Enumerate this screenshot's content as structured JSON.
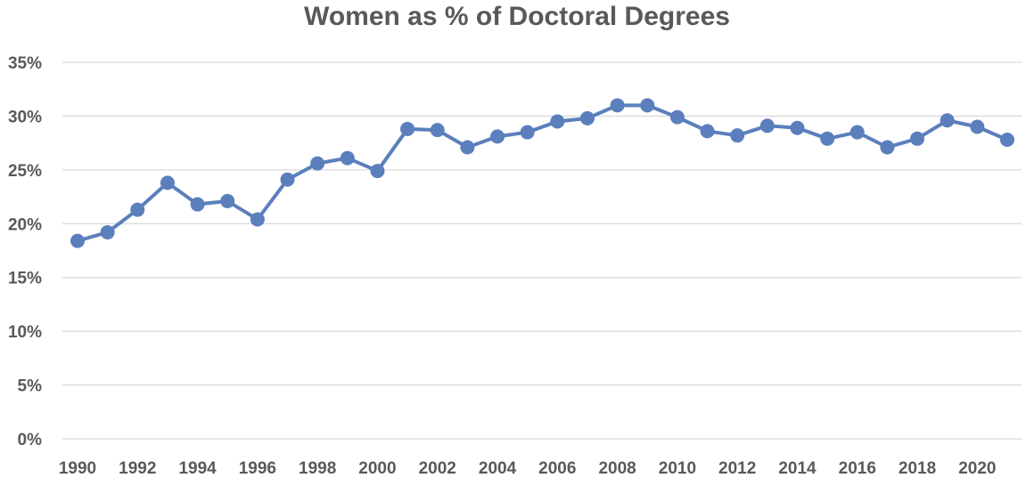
{
  "chart_data": {
    "type": "line",
    "title": "Women as % of Doctoral Degrees",
    "xlabel": "",
    "ylabel": "",
    "x": [
      1990,
      1991,
      1992,
      1993,
      1994,
      1995,
      1996,
      1997,
      1998,
      1999,
      2000,
      2001,
      2002,
      2003,
      2004,
      2005,
      2006,
      2007,
      2008,
      2009,
      2010,
      2011,
      2012,
      2013,
      2014,
      2015,
      2016,
      2017,
      2018,
      2019,
      2020,
      2021
    ],
    "x_tick_labels": [
      "1990",
      "1992",
      "1994",
      "1996",
      "1998",
      "2000",
      "2002",
      "2004",
      "2006",
      "2008",
      "2010",
      "2012",
      "2014",
      "2016",
      "2018",
      "2020"
    ],
    "series": [
      {
        "values": [
          18.4,
          19.2,
          21.3,
          23.8,
          21.8,
          22.1,
          20.4,
          24.1,
          25.6,
          26.1,
          24.9,
          28.8,
          28.7,
          27.1,
          28.1,
          28.5,
          29.5,
          29.8,
          31.0,
          31.0,
          29.9,
          28.6,
          28.2,
          29.1,
          28.9,
          27.9,
          28.5,
          27.1,
          27.9,
          29.6,
          29.0,
          27.8
        ],
        "color": "#5b7fbd"
      }
    ],
    "ylim": [
      0,
      35
    ],
    "y_tick_labels": [
      "0%",
      "5%",
      "10%",
      "15%",
      "20%",
      "25%",
      "30%",
      "35%"
    ],
    "grid": "horizontal",
    "legend": "none"
  }
}
